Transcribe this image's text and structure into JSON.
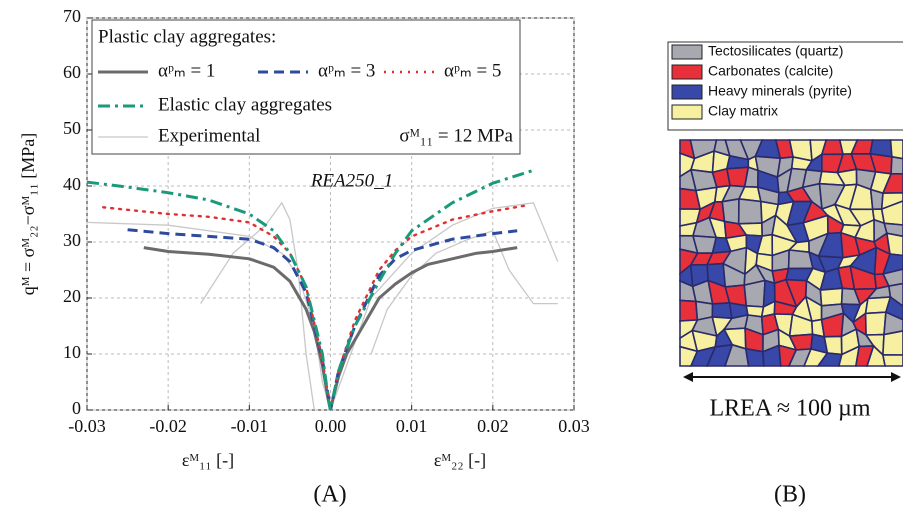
{
  "chart_data": {
    "type": "line",
    "y_label": "qᴹ = σᴹ₂₂−σᴹ₁₁ [MPa]",
    "x_label_left": "εᴹ₁₁ [-]",
    "x_label_right": "εᴹ₂₂ [-]",
    "legend_heading": "Plastic clay aggregates:",
    "annotation_stress": "σᴹ₁₁ = 12 MPa",
    "annotation_sample": "REA250_1",
    "panel_label": "(A)",
    "xlim": [
      -0.03,
      0.03
    ],
    "ylim": [
      0,
      70
    ],
    "xticks": [
      -0.03,
      -0.02,
      -0.01,
      {
        "value": 0,
        "label": "0.00"
      },
      0.01,
      0.02,
      0.03
    ],
    "yticks": [
      0,
      10,
      20,
      30,
      40,
      50,
      60,
      70
    ],
    "grid": true,
    "series": [
      {
        "name": "Experimental",
        "color": "#c8c8c8",
        "line_style": "solid",
        "x": [
          -0.03,
          -0.02,
          -0.01,
          -0.006,
          -0.004,
          -0.002,
          -0.001,
          0,
          0.002,
          0.005,
          0.01,
          0.015,
          0.02,
          0.025,
          0.028,
          null,
          -0.016,
          -0.012,
          -0.008,
          -0.006,
          -0.005,
          -0.004,
          -0.003,
          -0.002,
          null,
          0.005,
          0.007,
          0.01,
          0.013,
          0.017,
          0.02,
          0.022,
          0.025,
          0.028
        ],
        "values": [
          33.5,
          33,
          31,
          28,
          24,
          15,
          5,
          0,
          8,
          20,
          28,
          33,
          36,
          37,
          26.5,
          null,
          19,
          28,
          33,
          37,
          34,
          25,
          10,
          0,
          null,
          10,
          18,
          24,
          28,
          30.5,
          32,
          25,
          19,
          19
        ]
      },
      {
        "name": "αᵖₘ = 1",
        "color": "#6b6b6b",
        "line_style": "solid",
        "x": [
          -0.023,
          -0.02,
          -0.015,
          -0.01,
          -0.007,
          -0.005,
          -0.003,
          -0.002,
          -0.001,
          -0.0003,
          0,
          0.0003,
          0.001,
          0.002,
          0.004,
          0.006,
          0.008,
          0.01,
          0.012,
          0.015,
          0.018,
          0.02,
          0.023
        ],
        "values": [
          29,
          28.3,
          27.8,
          27,
          25.5,
          23,
          18,
          14,
          8,
          2,
          0,
          2,
          6,
          10,
          15,
          20,
          22.5,
          24.5,
          26,
          27,
          28,
          28.3,
          29
        ]
      },
      {
        "name": "αᵖₘ = 3",
        "color": "#2e4a9e",
        "line_style": "dashed",
        "x": [
          -0.025,
          -0.02,
          -0.015,
          -0.01,
          -0.007,
          -0.005,
          -0.003,
          -0.001,
          0,
          0.001,
          0.003,
          0.006,
          0.008,
          0.01,
          0.015,
          0.02,
          0.023
        ],
        "values": [
          32.2,
          31.5,
          31,
          30.5,
          29,
          26.5,
          21,
          9,
          0,
          7,
          15,
          24,
          27,
          28.5,
          30.5,
          31.5,
          32
        ]
      },
      {
        "name": "αᵖₘ = 5",
        "color": "#e03030",
        "line_style": "dotted",
        "x": [
          -0.028,
          -0.02,
          -0.015,
          -0.01,
          -0.007,
          -0.005,
          -0.003,
          -0.001,
          0,
          0.001,
          0.003,
          0.006,
          0.008,
          0.01,
          0.015,
          0.02,
          0.024
        ],
        "values": [
          36.2,
          35,
          34.5,
          33.5,
          31,
          28,
          22,
          9,
          0,
          7,
          16,
          25,
          28.5,
          31,
          34,
          35.5,
          36.5
        ]
      },
      {
        "name": "Elastic clay aggregates",
        "color": "#1a9a7a",
        "line_style": "dashdot",
        "x": [
          -0.03,
          -0.025,
          -0.02,
          -0.015,
          -0.01,
          -0.007,
          -0.005,
          -0.003,
          -0.001,
          -0.0003,
          0,
          0.0003,
          0.001,
          0.003,
          0.006,
          0.008,
          0.01,
          0.015,
          0.02,
          0.025
        ],
        "values": [
          40.7,
          39.8,
          38.8,
          37.5,
          35,
          32,
          28,
          22,
          10,
          2,
          0,
          2,
          7,
          15,
          23,
          28,
          32,
          37,
          40.5,
          42.8
        ]
      }
    ]
  },
  "microstructure": {
    "panel_label": "(B)",
    "scale_label": "LREA ≈ 100 µm",
    "legend": [
      {
        "label": "Tectosilicates (quartz)",
        "color": "#a8a8b0"
      },
      {
        "label": "Carbonates (calcite)",
        "color": "#e8303a"
      },
      {
        "label": "Heavy minerals (pyrite)",
        "color": "#3848a8"
      },
      {
        "label": "Clay matrix",
        "color": "#f6f0a0"
      }
    ]
  }
}
